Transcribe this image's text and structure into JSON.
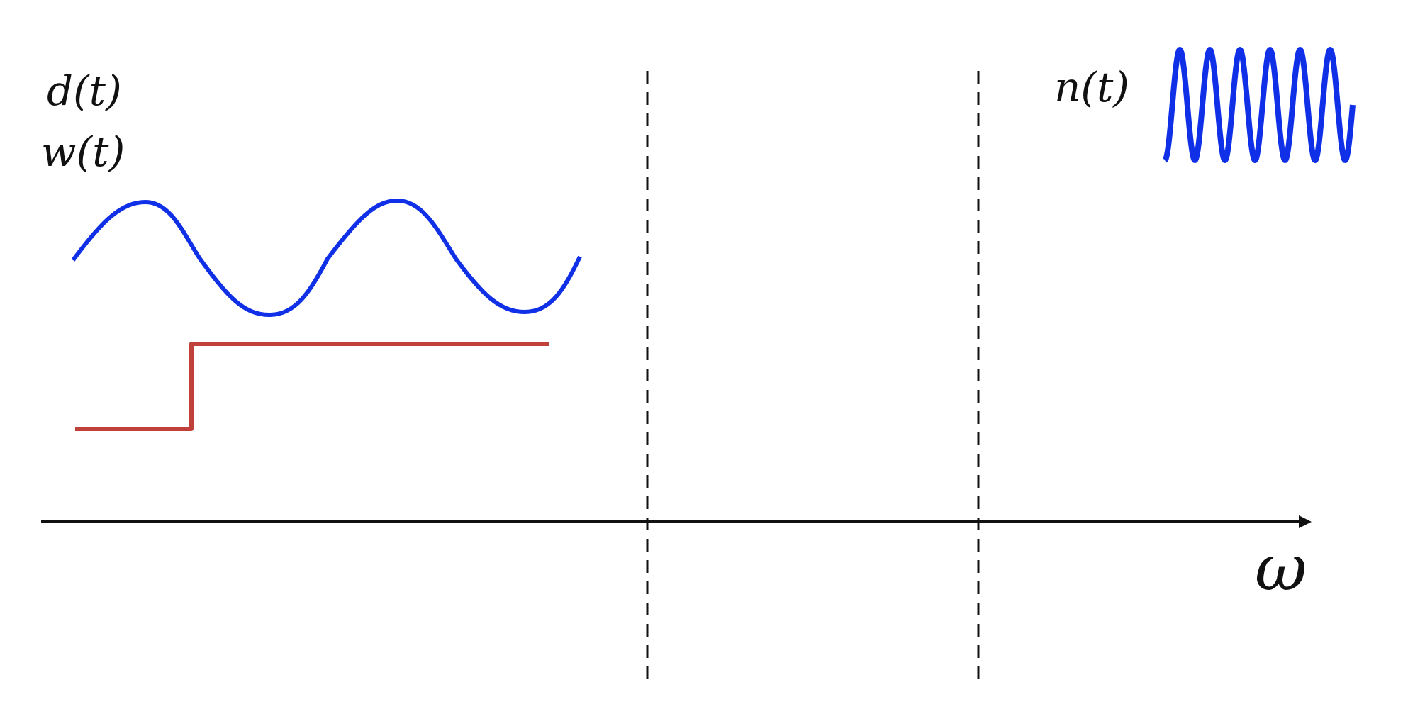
{
  "labels": {
    "disturbance": "d(t)",
    "reference": "w(t)",
    "noise": "n(t)",
    "frequency_axis": "ω"
  },
  "colors": {
    "signal_blue": "#1030e8",
    "step_red": "#c0403a",
    "axis_black": "#111111",
    "divider_black": "#111111"
  },
  "elements": {
    "low_frequency_sine": "slow sine wave",
    "step_signal": "unit step",
    "high_frequency_sine": "fast sine wave",
    "frequency_axis": "arrow",
    "band_dividers": "two dashed vertical lines"
  }
}
